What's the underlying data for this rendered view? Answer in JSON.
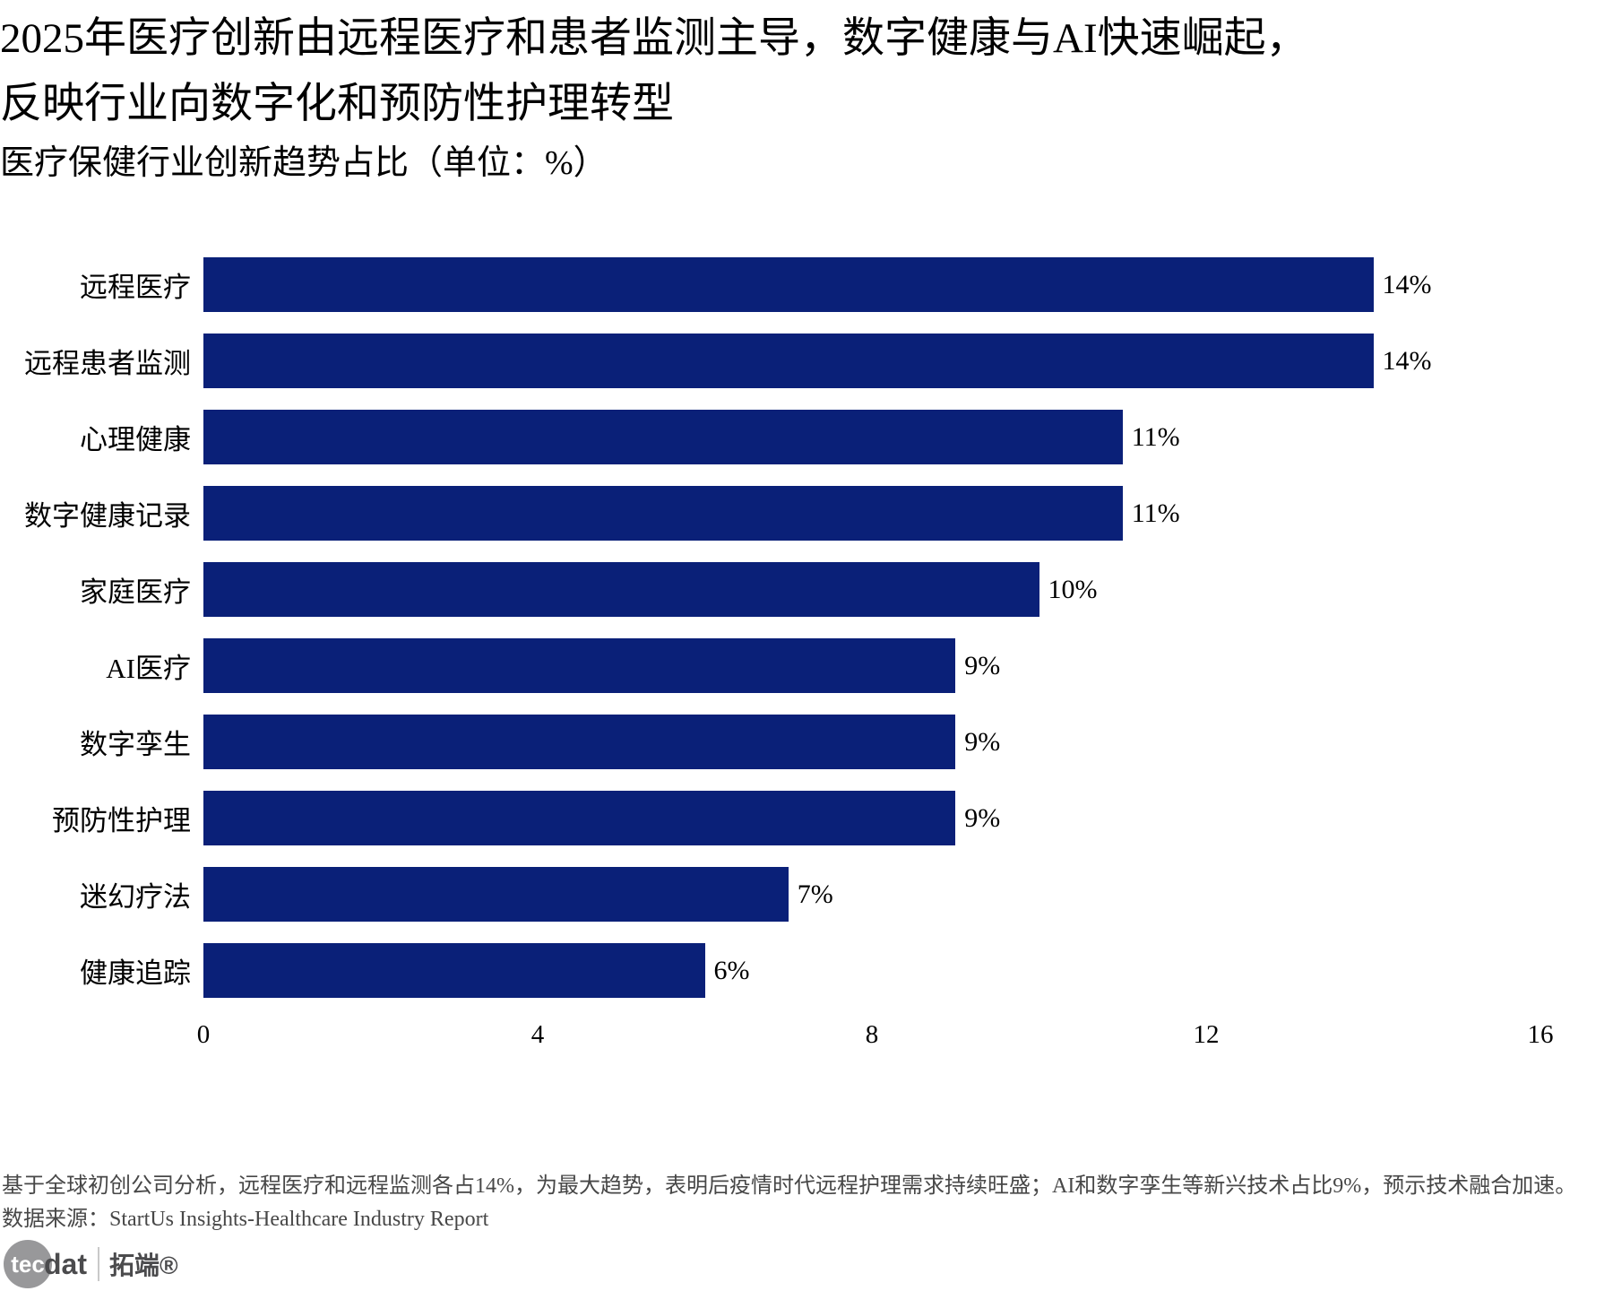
{
  "title": {
    "line1": "2025年医疗创新由远程医疗和患者监测主导，数字健康与AI快速崛起，",
    "line2": "反映行业向数字化和预防性护理转型",
    "subtitle": "医疗保健行业创新趋势占比（单位：%）"
  },
  "chart_data": {
    "type": "bar",
    "orientation": "horizontal",
    "title": "医疗保健行业创新趋势占比（单位：%）",
    "categories": [
      "远程医疗",
      "远程患者监测",
      "心理健康",
      "数字健康记录",
      "家庭医疗",
      "AI医疗",
      "数字孪生",
      "预防性护理",
      "迷幻疗法",
      "健康追踪"
    ],
    "values": [
      14,
      14,
      11,
      11,
      10,
      9,
      9,
      9,
      7,
      6
    ],
    "value_labels": [
      "14%",
      "14%",
      "11%",
      "11%",
      "10%",
      "9%",
      "9%",
      "9%",
      "7%",
      "6%"
    ],
    "xlim": [
      0,
      16
    ],
    "xticks": [
      0,
      4,
      8,
      12,
      16
    ],
    "bar_color": "#0a2078",
    "grid": false,
    "legend": "none"
  },
  "footer": {
    "note": "基于全球初创公司分析，远程医疗和远程监测各占14%，为最大趋势，表明后疫情时代远程护理需求持续旺盛；AI和数字孪生等新兴技术占比9%，预示技术融合加速。",
    "source": "数据来源：StartUs Insights-Healthcare Industry Report"
  },
  "logo": {
    "circle_text": "tec",
    "suffix": "dat",
    "brand": "拓端®"
  }
}
